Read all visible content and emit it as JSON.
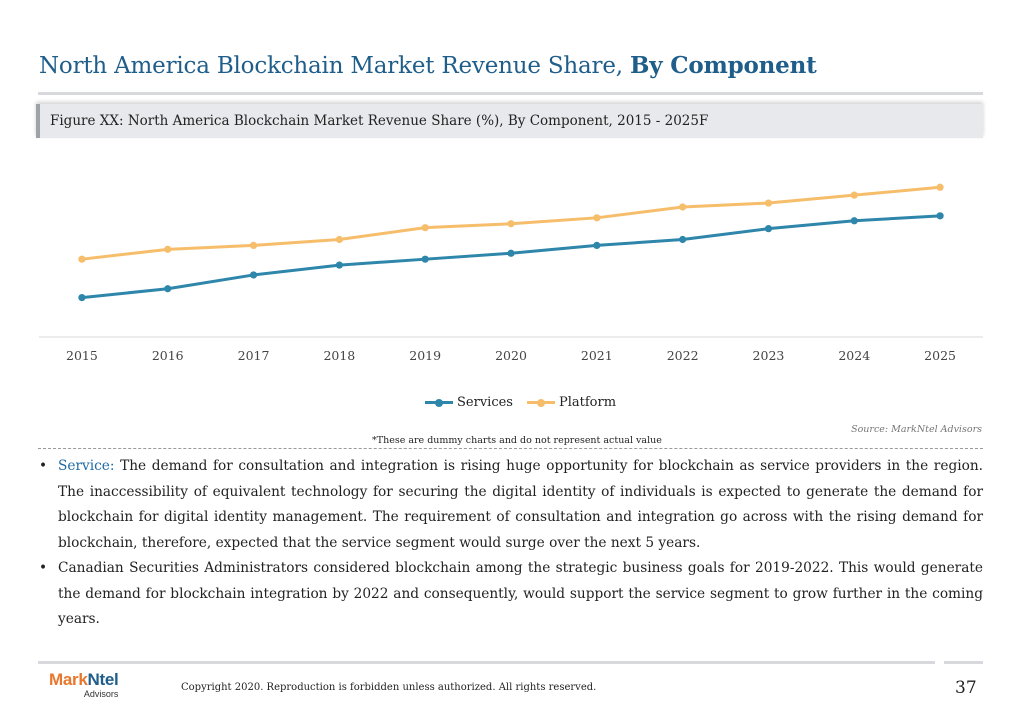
{
  "header": {
    "title_regular": "North America Blockchain Market Revenue Share,",
    "title_bold": "By Component"
  },
  "figure": {
    "caption": "Figure XX: North America Blockchain Market Revenue Share (%), By Component, 2015 - 2025F"
  },
  "chart_data": {
    "type": "line",
    "title": "",
    "xlabel": "",
    "ylabel": "",
    "x": [
      "2015",
      "2016",
      "2017",
      "2018",
      "2019",
      "2020",
      "2021",
      "2022",
      "2023",
      "2024",
      "2025"
    ],
    "ylim": [
      0,
      100
    ],
    "grid": false,
    "legend_position": "bottom",
    "series": [
      {
        "name": "Services",
        "color": "#2e86ab",
        "values": [
          20,
          24.5,
          31.5,
          36.5,
          39.5,
          42.5,
          46.5,
          49.5,
          55,
          59,
          61.5
        ]
      },
      {
        "name": "Platform",
        "color": "#f6bd6b",
        "values": [
          39.5,
          44.5,
          46.5,
          49.5,
          55.5,
          57.5,
          60.5,
          66,
          68,
          72,
          76
        ]
      }
    ]
  },
  "source": "Source: MarkNtel Advisors",
  "disclaimer": "*These are dummy charts and do not represent actual value",
  "bullets": [
    {
      "lead": "Service:",
      "text": " The demand for consultation and integration is rising huge opportunity for blockchain as service providers in the region. The inaccessibility of equivalent technology for securing the digital identity of individuals is expected to generate the demand for blockchain for digital identity management. The requirement of consultation and integration go across with the rising demand for blockchain, therefore, expected that the service segment would surge over the next 5 years."
    },
    {
      "lead": "",
      "text": "Canadian Securities Administrators considered blockchain among the strategic business goals for 2019-2022. This would generate the demand for blockchain integration by 2022 and consequently, would support the service segment to grow further in the coming years."
    }
  ],
  "footer": {
    "logo_mark": "Mark",
    "logo_ntel": "Ntel",
    "logo_sub": "Advisors",
    "copyright": "Copyright 2020. Reproduction is forbidden unless authorized. All rights reserved.",
    "page_number": "37"
  }
}
